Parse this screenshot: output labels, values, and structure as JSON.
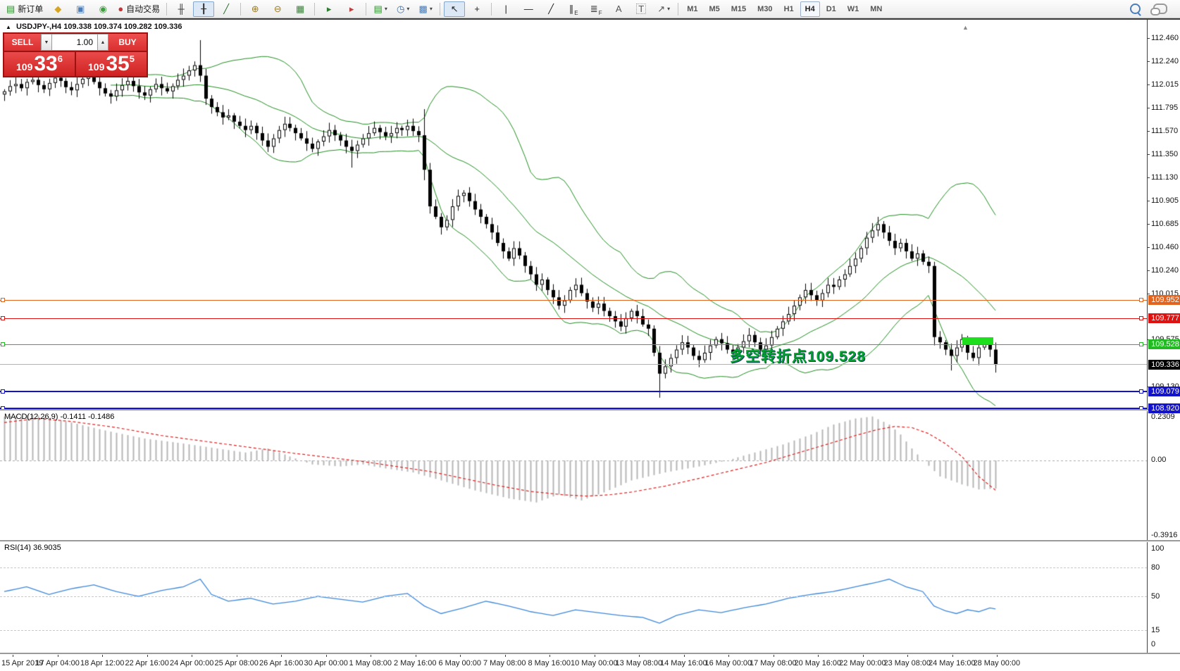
{
  "toolbar": {
    "groups": [
      {
        "items": [
          {
            "name": "new-order-button",
            "glyph": "▤",
            "color": "#2e8b2e",
            "label": "新订单"
          },
          {
            "name": "eraser-button",
            "glyph": "◆",
            "color": "#d9a520"
          },
          {
            "name": "chart-window-button",
            "glyph": "▣",
            "color": "#4a7ebb"
          },
          {
            "name": "signal-button",
            "glyph": "◉",
            "color": "#3f9e3f"
          },
          {
            "name": "autotrade-button",
            "glyph": "●",
            "color": "#cc3333",
            "label": "自动交易"
          }
        ]
      },
      {
        "items": [
          {
            "name": "bar-chart-button",
            "glyph": "╫",
            "color": "#333333"
          },
          {
            "name": "candlestick-chart-button",
            "glyph": "╂",
            "color": "#333333",
            "active": true
          },
          {
            "name": "line-chart-button",
            "glyph": "╱",
            "color": "#2d6e2d"
          }
        ]
      },
      {
        "items": [
          {
            "name": "zoom-in-button",
            "glyph": "⊕",
            "color": "#9a7b22"
          },
          {
            "name": "zoom-out-button",
            "glyph": "⊖",
            "color": "#9a7b22"
          },
          {
            "name": "tile-windows-button",
            "glyph": "▦",
            "color": "#3f7e3f"
          }
        ]
      },
      {
        "items": [
          {
            "name": "auto-scroll-button",
            "glyph": "▸",
            "color": "#2d7e2d"
          },
          {
            "name": "chart-shift-button",
            "glyph": "▸",
            "color": "#c04040"
          }
        ]
      },
      {
        "items": [
          {
            "name": "new-chart-button",
            "glyph": "▤",
            "color": "#2e8b2e",
            "caret": true
          },
          {
            "name": "profiles-button",
            "glyph": "◷",
            "color": "#3a6ea8",
            "caret": true
          },
          {
            "name": "templates-button",
            "glyph": "▩",
            "color": "#4a7ebb",
            "caret": true
          }
        ]
      },
      {
        "items": [
          {
            "name": "cursor-button",
            "glyph": "↖",
            "color": "#222222",
            "active": true
          },
          {
            "name": "crosshair-button",
            "glyph": "+",
            "color": "#222222"
          }
        ]
      },
      {
        "items": [
          {
            "name": "vertical-line-button",
            "glyph": "|",
            "color": "#222222"
          },
          {
            "name": "horizontal-line-button",
            "glyph": "—",
            "color": "#222222"
          },
          {
            "name": "trendline-button",
            "glyph": "╱",
            "color": "#222222"
          },
          {
            "name": "equidistant-channel-button",
            "glyph": "∥",
            "sub": "E",
            "color": "#222222"
          },
          {
            "name": "fibonacci-button",
            "glyph": "≣",
            "sub": "F",
            "color": "#222222"
          },
          {
            "name": "text-button",
            "glyph": "A",
            "color": "#555555"
          },
          {
            "name": "text-label-button",
            "glyph": "T",
            "color": "#555555",
            "boxed": true
          },
          {
            "name": "arrows-button",
            "glyph": "↗",
            "color": "#555555",
            "caret": true
          }
        ]
      }
    ],
    "timeframes": {
      "items": [
        "M1",
        "M5",
        "M15",
        "M30",
        "H1",
        "H4",
        "D1",
        "W1",
        "MN"
      ],
      "active": "H4"
    },
    "right_icons": [
      {
        "name": "search-button"
      },
      {
        "name": "chat-button"
      }
    ]
  },
  "chart": {
    "collapse_arrow": "▲",
    "header": "USDJPY-,H4  109.338 109.374 109.282 109.336",
    "scroll_marker": "▲"
  },
  "trade_panel": {
    "sell_label": "SELL",
    "buy_label": "BUY",
    "volume": "1.00",
    "sell_price_prefix": "109",
    "sell_price_big": "33",
    "sell_price_sup": "6",
    "buy_price_prefix": "109",
    "buy_price_big": "35",
    "buy_price_sup": "5"
  },
  "annotation": {
    "text": "多空转折点109.528",
    "color": "#00a32e"
  },
  "price_axis": {
    "ticks": [
      "112.460",
      "112.240",
      "112.015",
      "111.795",
      "111.570",
      "111.350",
      "111.130",
      "110.905",
      "110.685",
      "110.460",
      "110.240",
      "110.015",
      "109.575",
      "109.130"
    ],
    "lines": [
      {
        "name": "resistance-line-109952",
        "value": "109.952",
        "price": 109.952,
        "color": "#e2641e",
        "width": 1
      },
      {
        "name": "resistance-line-109777",
        "value": "109.777",
        "price": 109.777,
        "color": "#df1212",
        "width": 1
      },
      {
        "name": "pivot-line-109528",
        "value": "109.528",
        "price": 109.528,
        "color": "#22bb22",
        "width": 1
      },
      {
        "name": "support-line-109079",
        "value": "109.079",
        "price": 109.079,
        "color": "#1313cc",
        "width": 2
      },
      {
        "name": "support-line-108920",
        "value": "108.920",
        "price": 108.92,
        "color": "#1313cc",
        "width": 2
      }
    ],
    "current": {
      "value": "109.336",
      "price": 109.336,
      "line_color": "#b2b2b2",
      "badge_bg": "#000000"
    }
  },
  "time_axis": {
    "labels": [
      "15 Apr 2019",
      "17 Apr 04:00",
      "18 Apr 12:00",
      "22 Apr 16:00",
      "24 Apr 00:00",
      "25 Apr 08:00",
      "26 Apr 16:00",
      "30 Apr 00:00",
      "1 May 08:00",
      "2 May 16:00",
      "6 May 00:00",
      "7 May 08:00",
      "8 May 16:00",
      "10 May 00:00",
      "13 May 08:00",
      "14 May 16:00",
      "16 May 00:00",
      "17 May 08:00",
      "20 May 16:00",
      "22 May 00:00",
      "23 May 08:00",
      "24 May 16:00",
      "28 May 00:00"
    ]
  },
  "macd": {
    "label": "MACD(12,26,9) -0.1411 -0.1486",
    "scale_max": "0.2309",
    "scale_zero": "0.00",
    "scale_min": "-0.3916"
  },
  "rsi": {
    "label": "RSI(14) 36.9035",
    "scale_labels": [
      {
        "text": "100",
        "v": 100
      },
      {
        "text": "80",
        "v": 80
      },
      {
        "text": "50",
        "v": 50
      },
      {
        "text": "15",
        "v": 15
      },
      {
        "text": "0",
        "v": 0
      }
    ],
    "levels": [
      80,
      50,
      15
    ]
  },
  "highlight_zone": {
    "price_top": 109.6,
    "price_bottom": 109.528,
    "color": "#1ede1e"
  },
  "chart_data": {
    "type": "candlestick",
    "symbol": "USDJPY-",
    "timeframe": "H4",
    "current_ohlc": {
      "open": 109.338,
      "high": 109.374,
      "low": 109.282,
      "close": 109.336
    },
    "y_axis_range": [
      108.84,
      112.55
    ],
    "closes": [
      111.95,
      112.0,
      112.02,
      111.98,
      112.04,
      112.06,
      112.01,
      111.97,
      112.03,
      112.08,
      112.05,
      111.99,
      111.96,
      112.02,
      112.07,
      112.1,
      112.04,
      111.98,
      111.93,
      111.9,
      111.96,
      112.01,
      112.05,
      112.0,
      111.94,
      111.91,
      111.97,
      112.02,
      111.98,
      111.95,
      112.0,
      112.06,
      112.1,
      112.15,
      112.2,
      112.1,
      111.88,
      111.8,
      111.75,
      111.7,
      111.72,
      111.66,
      111.62,
      111.58,
      111.62,
      111.55,
      111.48,
      111.42,
      111.5,
      111.58,
      111.64,
      111.6,
      111.55,
      111.5,
      111.45,
      111.4,
      111.47,
      111.52,
      111.58,
      111.53,
      111.48,
      111.42,
      111.38,
      111.44,
      111.5,
      111.55,
      111.6,
      111.56,
      111.52,
      111.55,
      111.6,
      111.58,
      111.62,
      111.57,
      111.53,
      111.2,
      110.85,
      110.75,
      110.65,
      110.72,
      110.85,
      110.95,
      110.98,
      110.9,
      110.82,
      110.75,
      110.68,
      110.6,
      110.5,
      110.42,
      110.35,
      110.45,
      110.38,
      110.28,
      110.2,
      110.1,
      110.15,
      110.05,
      109.98,
      109.9,
      109.95,
      110.05,
      110.1,
      110.02,
      109.94,
      109.88,
      109.92,
      109.85,
      109.8,
      109.75,
      109.7,
      109.78,
      109.85,
      109.8,
      109.72,
      109.68,
      109.45,
      109.25,
      109.32,
      109.4,
      109.48,
      109.55,
      109.5,
      109.42,
      109.38,
      109.45,
      109.52,
      109.58,
      109.54,
      109.48,
      109.44,
      109.5,
      109.56,
      109.62,
      109.55,
      109.48,
      109.52,
      109.6,
      109.68,
      109.75,
      109.82,
      109.9,
      109.98,
      110.05,
      110.0,
      109.95,
      110.02,
      110.1,
      110.08,
      110.15,
      110.2,
      110.28,
      110.35,
      110.45,
      110.55,
      110.62,
      110.68,
      110.6,
      110.52,
      110.45,
      110.5,
      110.42,
      110.35,
      110.4,
      110.32,
      110.28,
      109.6,
      109.55,
      109.48,
      109.42,
      109.5,
      109.58,
      109.45,
      109.4,
      109.5,
      109.55,
      109.48,
      109.336
    ],
    "wick_overrides": {
      "35": {
        "h": 112.44,
        "l": 112.04
      },
      "36": {
        "l": 111.82
      },
      "47": {
        "l": 111.37
      },
      "62": {
        "l": 111.22
      },
      "75": {
        "h": 111.78,
        "l": 111.1
      },
      "117": {
        "l": 109.02
      },
      "156": {
        "h": 110.75
      },
      "166": {
        "h": 110.32,
        "l": 109.52
      },
      "169": {
        "l": 109.28
      },
      "177": {
        "l": 109.26
      }
    },
    "bollinger": {
      "period": 20,
      "deviation": 2,
      "color": "#1e8c1e"
    },
    "indicators": {
      "macd": {
        "params": [
          12,
          26,
          9
        ],
        "current_macd": -0.1411,
        "current_signal": -0.1486,
        "range": [
          -0.3916,
          0.2309
        ],
        "hist_color": "#b6b6b6",
        "signal_color": "#dd2222",
        "hist_samples": [
          [
            0,
            0.22
          ],
          [
            5,
            0.23
          ],
          [
            12,
            0.19
          ],
          [
            18,
            0.15
          ],
          [
            25,
            0.11
          ],
          [
            32,
            0.085
          ],
          [
            38,
            0.06
          ],
          [
            43,
            0.04
          ],
          [
            47,
            0.06
          ],
          [
            51,
            0.02
          ],
          [
            55,
            -0.02
          ],
          [
            60,
            -0.03
          ],
          [
            64,
            -0.02
          ],
          [
            68,
            -0.04
          ],
          [
            73,
            -0.06
          ],
          [
            78,
            -0.1
          ],
          [
            84,
            -0.15
          ],
          [
            90,
            -0.19
          ],
          [
            95,
            -0.21
          ],
          [
            99,
            -0.17
          ],
          [
            103,
            -0.2
          ],
          [
            107,
            -0.16
          ],
          [
            112,
            -0.1
          ],
          [
            118,
            -0.06
          ],
          [
            124,
            -0.03
          ],
          [
            129,
            0.0
          ],
          [
            134,
            0.04
          ],
          [
            139,
            0.08
          ],
          [
            144,
            0.13
          ],
          [
            148,
            0.18
          ],
          [
            152,
            0.21
          ],
          [
            155,
            0.22
          ],
          [
            158,
            0.18
          ],
          [
            160,
            0.13
          ],
          [
            162,
            0.06
          ],
          [
            164,
            0.0
          ],
          [
            167,
            -0.08
          ],
          [
            171,
            -0.12
          ],
          [
            174,
            -0.145
          ],
          [
            177,
            -0.141
          ]
        ],
        "signal_samples": [
          [
            0,
            0.19
          ],
          [
            6,
            0.21
          ],
          [
            12,
            0.195
          ],
          [
            20,
            0.165
          ],
          [
            28,
            0.125
          ],
          [
            36,
            0.095
          ],
          [
            44,
            0.065
          ],
          [
            52,
            0.035
          ],
          [
            58,
            0.015
          ],
          [
            64,
            -0.005
          ],
          [
            70,
            -0.03
          ],
          [
            76,
            -0.055
          ],
          [
            82,
            -0.09
          ],
          [
            88,
            -0.125
          ],
          [
            94,
            -0.155
          ],
          [
            100,
            -0.172
          ],
          [
            104,
            -0.178
          ],
          [
            108,
            -0.172
          ],
          [
            112,
            -0.158
          ],
          [
            118,
            -0.128
          ],
          [
            124,
            -0.09
          ],
          [
            130,
            -0.05
          ],
          [
            136,
            -0.01
          ],
          [
            142,
            0.04
          ],
          [
            148,
            0.09
          ],
          [
            152,
            0.125
          ],
          [
            156,
            0.155
          ],
          [
            159,
            0.17
          ],
          [
            162,
            0.165
          ],
          [
            165,
            0.135
          ],
          [
            168,
            0.085
          ],
          [
            171,
            0.02
          ],
          [
            174,
            -0.08
          ],
          [
            177,
            -0.1486
          ]
        ]
      },
      "rsi": {
        "period": 14,
        "current": 36.9035,
        "color": "#3d87d8",
        "samples": [
          [
            0,
            55
          ],
          [
            4,
            60
          ],
          [
            8,
            52
          ],
          [
            12,
            58
          ],
          [
            16,
            62
          ],
          [
            20,
            55
          ],
          [
            24,
            50
          ],
          [
            28,
            56
          ],
          [
            32,
            60
          ],
          [
            35,
            68
          ],
          [
            37,
            52
          ],
          [
            40,
            45
          ],
          [
            44,
            48
          ],
          [
            48,
            42
          ],
          [
            52,
            45
          ],
          [
            56,
            50
          ],
          [
            60,
            47
          ],
          [
            64,
            44
          ],
          [
            68,
            50
          ],
          [
            72,
            53
          ],
          [
            75,
            40
          ],
          [
            78,
            32
          ],
          [
            82,
            38
          ],
          [
            86,
            45
          ],
          [
            90,
            40
          ],
          [
            94,
            34
          ],
          [
            98,
            30
          ],
          [
            102,
            36
          ],
          [
            106,
            33
          ],
          [
            110,
            30
          ],
          [
            114,
            28
          ],
          [
            117,
            22
          ],
          [
            120,
            30
          ],
          [
            124,
            36
          ],
          [
            128,
            33
          ],
          [
            132,
            38
          ],
          [
            136,
            42
          ],
          [
            140,
            48
          ],
          [
            144,
            52
          ],
          [
            148,
            55
          ],
          [
            152,
            60
          ],
          [
            156,
            65
          ],
          [
            158,
            68
          ],
          [
            161,
            60
          ],
          [
            164,
            55
          ],
          [
            166,
            40
          ],
          [
            168,
            35
          ],
          [
            170,
            32
          ],
          [
            172,
            36
          ],
          [
            174,
            34
          ],
          [
            176,
            38
          ],
          [
            177,
            36.9
          ]
        ]
      }
    }
  }
}
